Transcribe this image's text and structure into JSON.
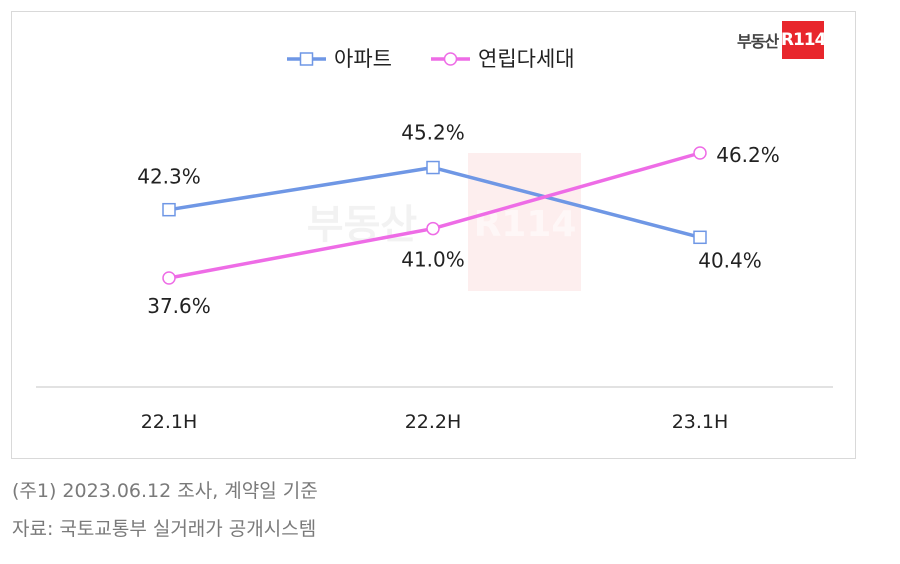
{
  "brand": {
    "text": "부동산",
    "box": "R114"
  },
  "notes": {
    "note1": "(주1) 2023.06.12 조사, 계약일 기준",
    "note2": "자료: 국토교통부 실거래가 공개시스템"
  },
  "colors": {
    "apartment": "#6f97e5",
    "villa": "#ee6ce6",
    "axis": "#d9d9d9",
    "watermark": "#e8262c"
  },
  "chart_data": {
    "type": "line",
    "categories": [
      "22.1H",
      "22.2H",
      "23.1H"
    ],
    "series": [
      {
        "name": "아파트",
        "values": [
          42.3,
          45.2,
          40.4
        ],
        "labels": [
          "42.3%",
          "45.2%",
          "40.4%"
        ],
        "marker": "square"
      },
      {
        "name": "연립다세대",
        "values": [
          37.6,
          41.0,
          46.2
        ],
        "labels": [
          "37.6%",
          "41.0%",
          "46.2%"
        ],
        "marker": "circle"
      }
    ],
    "legend_position": "top",
    "grid": false
  }
}
